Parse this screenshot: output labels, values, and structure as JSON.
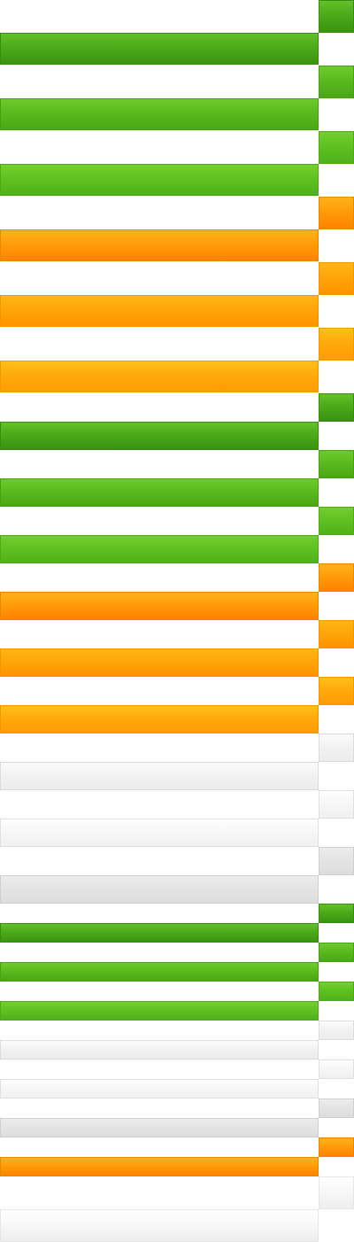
{
  "swatches": [
    {
      "kind": "square",
      "variant": "green-dark"
    },
    {
      "kind": "bar",
      "variant": "green-dark"
    },
    {
      "kind": "square",
      "variant": "green-mid"
    },
    {
      "kind": "bar",
      "variant": "green-mid"
    },
    {
      "kind": "square",
      "variant": "green-light"
    },
    {
      "kind": "bar",
      "variant": "green-light"
    },
    {
      "kind": "square",
      "variant": "orange-deep"
    },
    {
      "kind": "bar",
      "variant": "orange-deep"
    },
    {
      "kind": "square",
      "variant": "orange-mid"
    },
    {
      "kind": "bar",
      "variant": "orange-mid"
    },
    {
      "kind": "square",
      "variant": "orange-light"
    },
    {
      "kind": "bar",
      "variant": "orange-light"
    },
    {
      "kind": "square",
      "variant": "green-dark"
    },
    {
      "kind": "bar",
      "variant": "green-dark"
    },
    {
      "kind": "square",
      "variant": "green-mid"
    },
    {
      "kind": "bar",
      "variant": "green-mid"
    },
    {
      "kind": "square",
      "variant": "green-light"
    },
    {
      "kind": "bar",
      "variant": "green-light"
    },
    {
      "kind": "square",
      "variant": "orange-deep"
    },
    {
      "kind": "bar",
      "variant": "orange-deep"
    },
    {
      "kind": "square",
      "variant": "orange-mid"
    },
    {
      "kind": "bar",
      "variant": "orange-mid"
    },
    {
      "kind": "square",
      "variant": "orange-light"
    },
    {
      "kind": "bar",
      "variant": "orange-light"
    },
    {
      "kind": "square",
      "variant": "gray-light"
    },
    {
      "kind": "bar",
      "variant": "gray-light"
    },
    {
      "kind": "square",
      "variant": "gray-lighter"
    },
    {
      "kind": "bar",
      "variant": "gray-lighter"
    },
    {
      "kind": "square",
      "variant": "gray-dark"
    },
    {
      "kind": "bar",
      "variant": "gray-dark"
    },
    {
      "kind": "square",
      "variant": "green-dark"
    },
    {
      "kind": "bar",
      "variant": "green-dark"
    },
    {
      "kind": "square",
      "variant": "green-mid"
    },
    {
      "kind": "bar",
      "variant": "green-mid"
    },
    {
      "kind": "square",
      "variant": "green-light"
    },
    {
      "kind": "bar",
      "variant": "green-light"
    },
    {
      "kind": "square",
      "variant": "gray-light"
    },
    {
      "kind": "bar",
      "variant": "gray-light"
    },
    {
      "kind": "square",
      "variant": "gray-lighter"
    },
    {
      "kind": "bar",
      "variant": "gray-lighter"
    },
    {
      "kind": "square",
      "variant": "gray-dark"
    },
    {
      "kind": "bar",
      "variant": "gray-dark"
    },
    {
      "kind": "square",
      "variant": "orange-deep"
    },
    {
      "kind": "bar",
      "variant": "orange-deep"
    },
    {
      "kind": "square",
      "variant": "gray-fade"
    },
    {
      "kind": "bar",
      "variant": "gray-fade"
    }
  ],
  "colors": {
    "green": "#4aa818",
    "orange": "#ff9a08",
    "gray": "#e6e6e6",
    "background": "#ffffff"
  }
}
